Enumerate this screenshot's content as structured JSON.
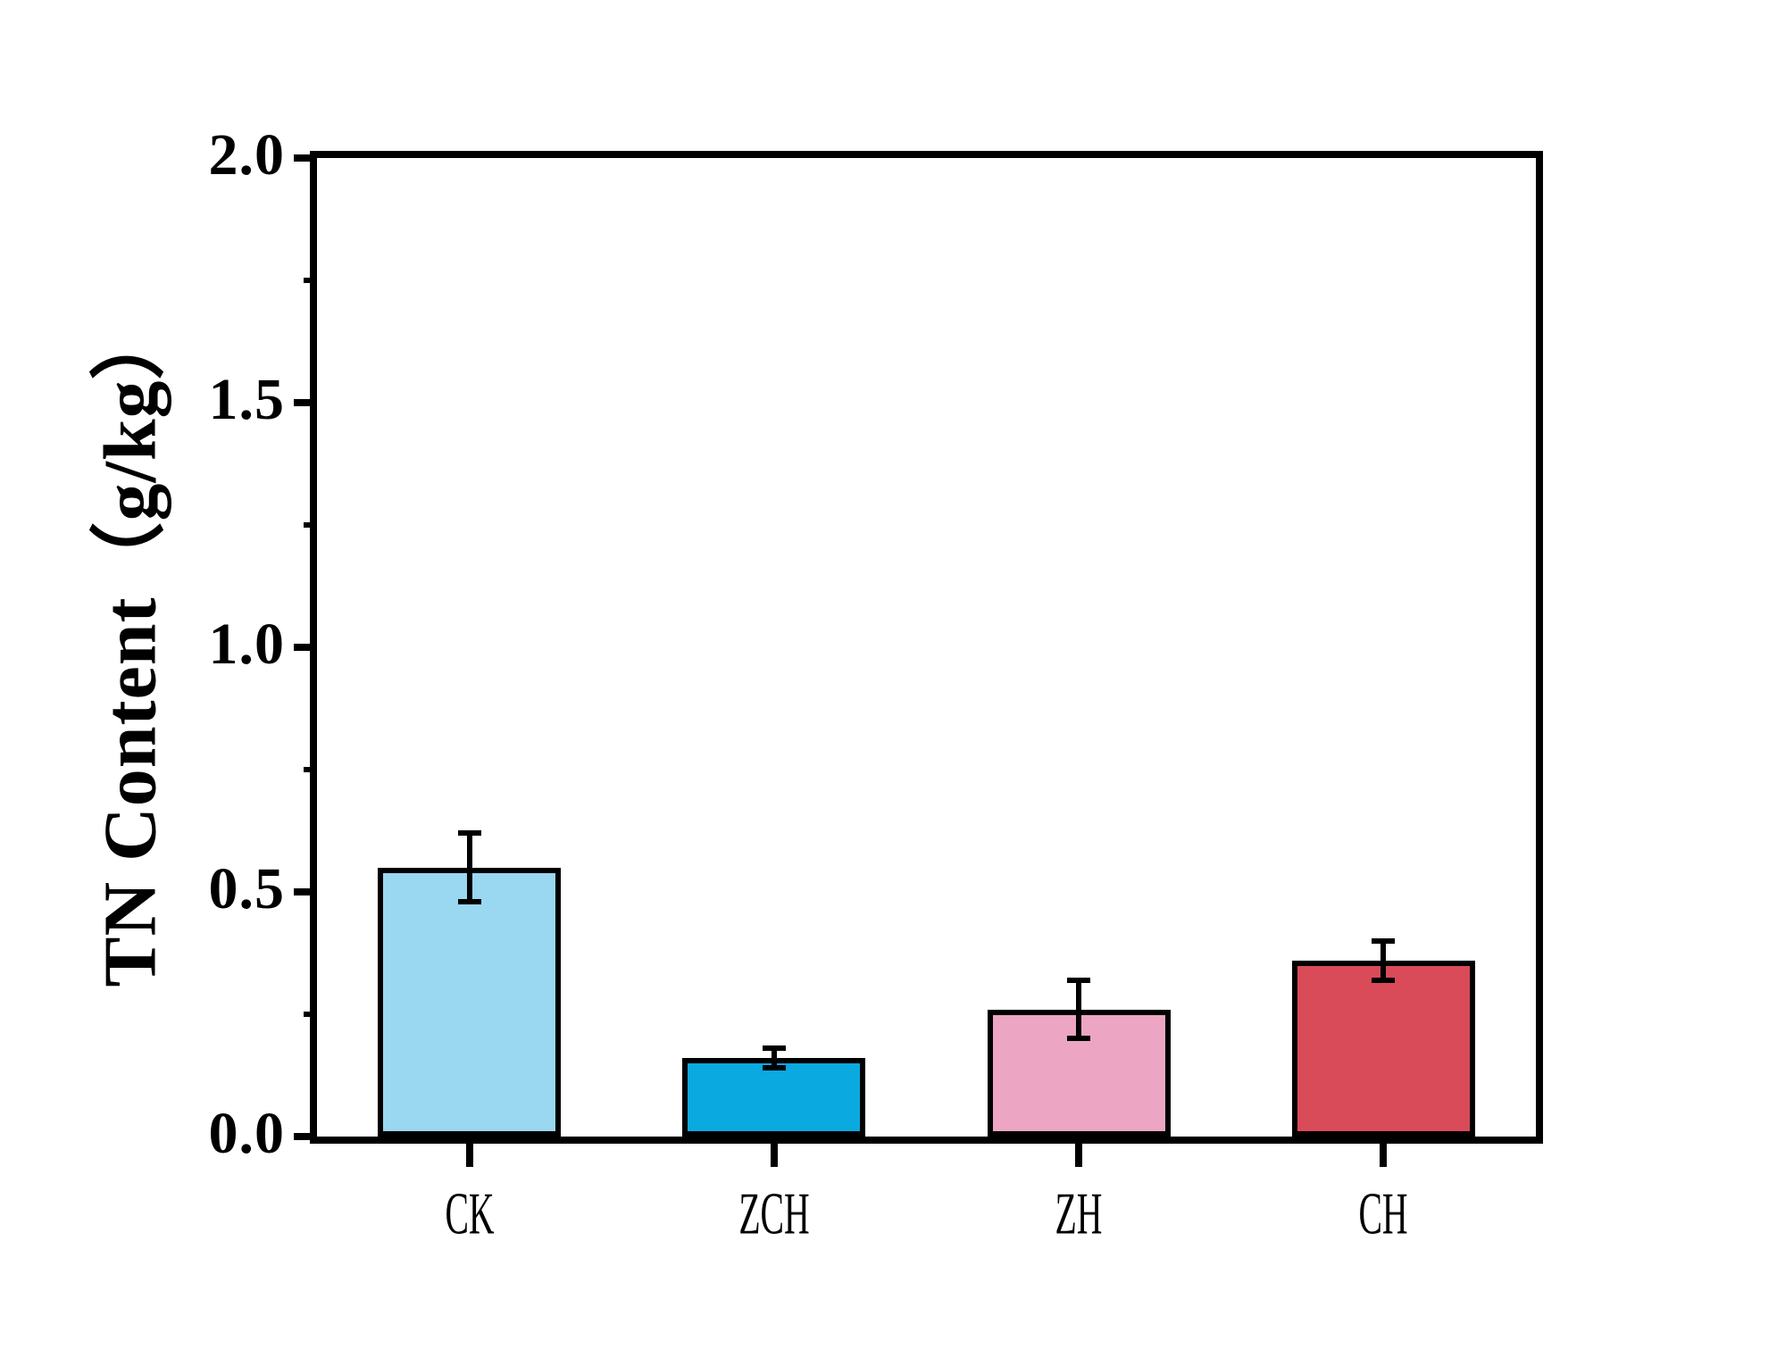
{
  "chart_data": {
    "type": "bar",
    "title": "",
    "ylabel": "TN Content（g/kg）",
    "xlabel": "",
    "categories": [
      "CK",
      "ZCH",
      "ZH",
      "CH"
    ],
    "values": [
      0.55,
      0.16,
      0.26,
      0.36
    ],
    "errors": [
      0.07,
      0.02,
      0.06,
      0.04
    ],
    "bar_colors": [
      "#9AD7F0",
      "#0AA9DF",
      "#ECA5C2",
      "#D94B59"
    ],
    "bar_outline_color": "#000000",
    "ylim": [
      0.0,
      2.0
    ],
    "ytick_values": [
      0.0,
      0.5,
      1.0,
      1.5,
      2.0
    ],
    "ytick_labels": [
      "0.0",
      "0.5",
      "1.0",
      "1.5",
      "2.0"
    ],
    "yminor_tick_values": [
      0.25,
      0.75,
      1.25,
      1.75
    ],
    "grid": false,
    "legend": null,
    "axis_color": "#000000",
    "background_color": "#FFFFFF"
  }
}
